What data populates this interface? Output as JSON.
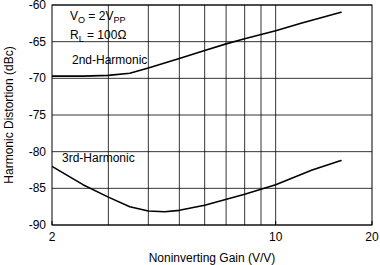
{
  "chart_data": {
    "type": "line",
    "x_label": "Noninverting Gain (V/V)",
    "y_label": "Harmonic Distortion (dBc)",
    "annotations": [
      [
        "V",
        "O",
        " = 2V",
        "PP"
      ],
      [
        "R",
        "L",
        " = 100Ω"
      ]
    ],
    "log": "x",
    "grid": true,
    "xlim": [
      2,
      20
    ],
    "xticks": [
      2,
      10,
      20
    ],
    "ylim": [
      -90,
      -60
    ],
    "yticks": [
      -90,
      -85,
      -80,
      -75,
      -70,
      -65,
      -60
    ],
    "series": [
      {
        "name": "2nd-Harmonic",
        "color": "#000000",
        "x": [
          2,
          2.5,
          3,
          3.5,
          4,
          5,
          6,
          7,
          8,
          10,
          12,
          16
        ],
        "values": [
          -69.7,
          -69.7,
          -69.6,
          -69.3,
          -68.6,
          -67.3,
          -66.2,
          -65.3,
          -64.6,
          -63.5,
          -62.5,
          -61
        ]
      },
      {
        "name": "3rd-Harmonic",
        "color": "#000000",
        "x": [
          2,
          2.5,
          3,
          3.5,
          4,
          4.5,
          5,
          6,
          8,
          10,
          13,
          16
        ],
        "values": [
          -82,
          -84.5,
          -86.2,
          -87.5,
          -88.1,
          -88.2,
          -88,
          -87.3,
          -85.8,
          -84.5,
          -82.5,
          -81.2
        ]
      }
    ]
  }
}
